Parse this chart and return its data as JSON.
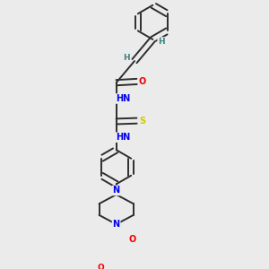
{
  "bg_color": "#ebebeb",
  "fig_size": [
    3.0,
    3.0
  ],
  "dpi": 100,
  "atom_colors": {
    "C": "#2d2d2d",
    "H": "#3d8080",
    "N": "#0000ee",
    "O": "#ee0000",
    "S": "#cccc00"
  },
  "bond_color": "#2d2d2d",
  "bond_width": 1.4,
  "font_size": 7.0,
  "xlim": [
    0.05,
    0.95
  ],
  "ylim": [
    0.02,
    1.0
  ]
}
